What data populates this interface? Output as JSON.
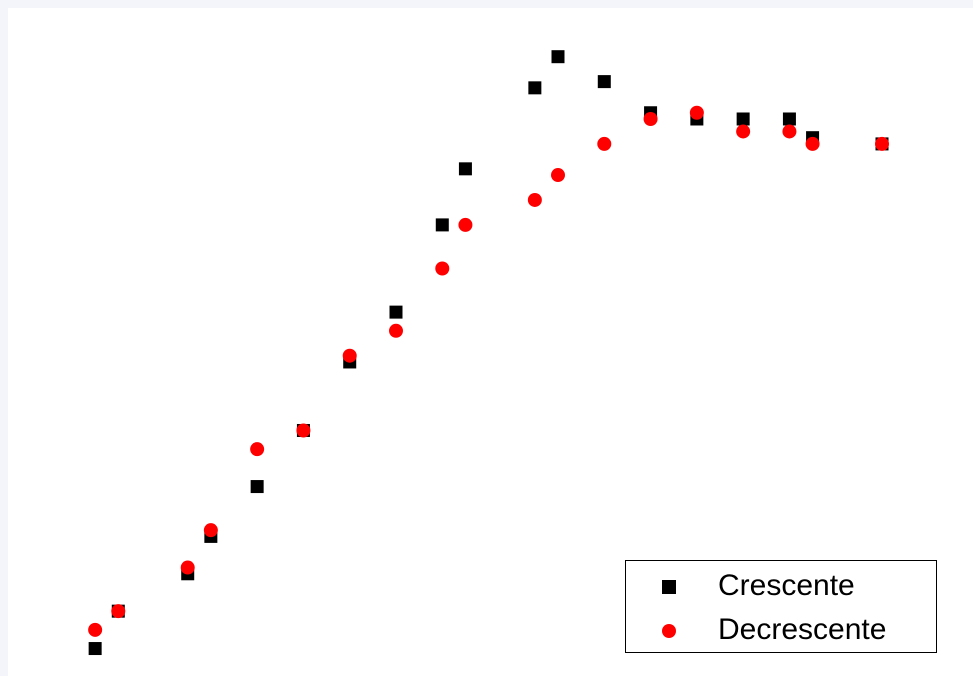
{
  "chart_data": {
    "type": "scatter",
    "title": "",
    "xlabel": "",
    "ylabel": "",
    "grid": false,
    "legend_position": "bottom-right",
    "xlim": [
      0,
      35
    ],
    "ylim": [
      0,
      100
    ],
    "series": [
      {
        "name": "Crescente",
        "marker": "square",
        "color": "#000000",
        "x": [
          1,
          2,
          5,
          6,
          8,
          10,
          12,
          14,
          16,
          17,
          20,
          21,
          23,
          25,
          27,
          29,
          31,
          32,
          35
        ],
        "y": [
          2,
          8,
          14,
          20,
          28,
          37,
          48,
          56,
          70,
          79,
          92,
          97,
          93,
          88,
          87,
          87,
          87,
          84,
          83
        ]
      },
      {
        "name": "Decrescente",
        "marker": "circle",
        "color": "#ff0000",
        "x": [
          1,
          2,
          5,
          6,
          8,
          10,
          12,
          14,
          16,
          17,
          20,
          21,
          23,
          25,
          27,
          29,
          31,
          32,
          35
        ],
        "y": [
          5,
          8,
          15,
          21,
          34,
          37,
          49,
          53,
          63,
          70,
          74,
          78,
          83,
          87,
          88,
          85,
          85,
          83,
          83
        ]
      }
    ]
  }
}
